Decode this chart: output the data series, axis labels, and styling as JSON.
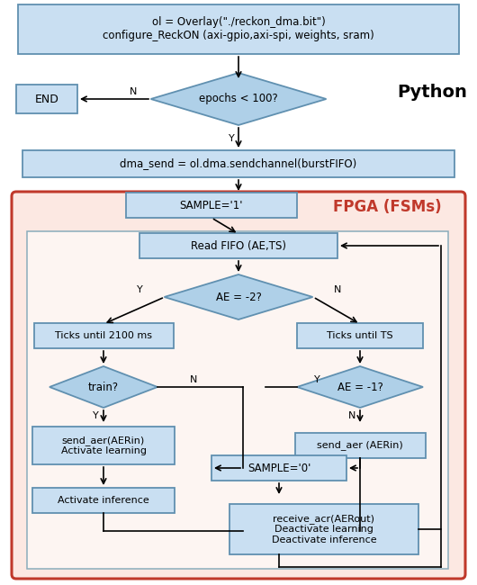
{
  "fig_width": 5.3,
  "fig_height": 6.5,
  "dpi": 100,
  "bg_color": "#ffffff",
  "box_fill": "#c9dff2",
  "box_edge": "#6090b0",
  "diamond_fill": "#afd0e8",
  "diamond_edge": "#6090b0",
  "fpga_bg": "#fce8e2",
  "fpga_edge": "#c0392b",
  "inner_bg": "#fdf5f2",
  "inner_edge": "#8aacbc",
  "python_label": "Python",
  "fpga_label": "FPGA (FSMs)",
  "overlay_text": "ol = Overlay(\"./reckon_dma.bit\")\nconfigure_ReckON (axi-gpio,axi-spi, weights, sram)",
  "epochs_text": "epochs < 100?",
  "end_text": "END",
  "dma_text": "dma_send = ol.dma.sendchannel(burstFIFO)",
  "sample1_text": "SAMPLE='1'",
  "read_fifo_text": "Read FIFO (AE,TS)",
  "ae_m2_text": "AE = -2?",
  "ticks_2100_text": "Ticks until 2100 ms",
  "ticks_ts_text": "Ticks until TS",
  "train_text": "train?",
  "ae_m1_text": "AE = -1?",
  "send_aer_learn_text": "send_aer(AERin)\nActivate learning",
  "send_aer2_text": "send_aer (AERin)",
  "activate_inf_text": "Activate inference",
  "sample0_text": "SAMPLE='0'",
  "receive_text": "receive_acr(AERout)\nDeactivate learning\nDeactivate inference"
}
